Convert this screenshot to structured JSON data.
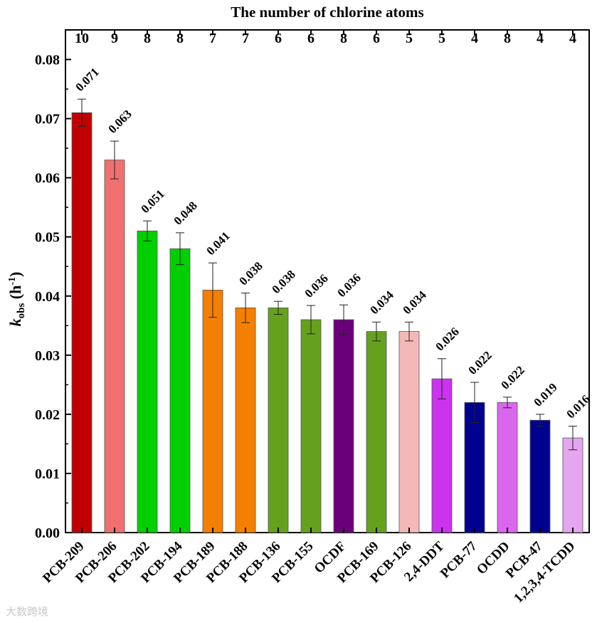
{
  "chart_data": {
    "type": "bar",
    "title": "",
    "top_axis_title": "The number of chlorine atoms",
    "ylabel_main": "k",
    "ylabel_sub": "obs",
    "ylabel_unit_open": " (h",
    "ylabel_sup": "-1",
    "ylabel_unit_close": ")",
    "ylim": [
      0,
      0.085
    ],
    "yticks": [
      "0.00",
      "0.01",
      "0.02",
      "0.03",
      "0.04",
      "0.05",
      "0.06",
      "0.07",
      "0.08"
    ],
    "categories": [
      "PCB-209",
      "PCB-206",
      "PCB-202",
      "PCB-194",
      "PCB-189",
      "PCB-188",
      "PCB-136",
      "PCB-155",
      "OCDF",
      "PCB-169",
      "PCB-126",
      "2,4-DDT",
      "PCB-77",
      "OCDD",
      "PCB-47",
      "1,2,3,4-TCDD"
    ],
    "values": [
      0.071,
      0.063,
      0.051,
      0.048,
      0.041,
      0.038,
      0.038,
      0.036,
      0.036,
      0.034,
      0.034,
      0.026,
      0.022,
      0.022,
      0.019,
      0.016
    ],
    "value_labels": [
      "0.071",
      "0.063",
      "0.051",
      "0.048",
      "0.041",
      "0.038",
      "0.038",
      "0.036",
      "0.036",
      "0.034",
      "0.034",
      "0.026",
      "0.022",
      "0.022",
      "0.019",
      "0.016"
    ],
    "errors": [
      0.0023,
      0.0032,
      0.0017,
      0.0027,
      0.0046,
      0.0025,
      0.0011,
      0.0024,
      0.0025,
      0.0016,
      0.0016,
      0.0034,
      0.0034,
      0.0009,
      0.001,
      0.002
    ],
    "chlorine_atoms": [
      "10",
      "9",
      "8",
      "8",
      "7",
      "7",
      "6",
      "6",
      "8",
      "6",
      "5",
      "5",
      "4",
      "8",
      "4",
      "4"
    ],
    "colors": [
      "#c00000",
      "#f07070",
      "#00d000",
      "#00d000",
      "#f57f00",
      "#f57f00",
      "#66a11e",
      "#66a11e",
      "#6a007a",
      "#66a11e",
      "#f5b8b8",
      "#cc33ee",
      "#000090",
      "#db66ee",
      "#000090",
      "#e4a6ee"
    ],
    "grid": false,
    "legend": "none"
  },
  "watermark": "大数跨境"
}
